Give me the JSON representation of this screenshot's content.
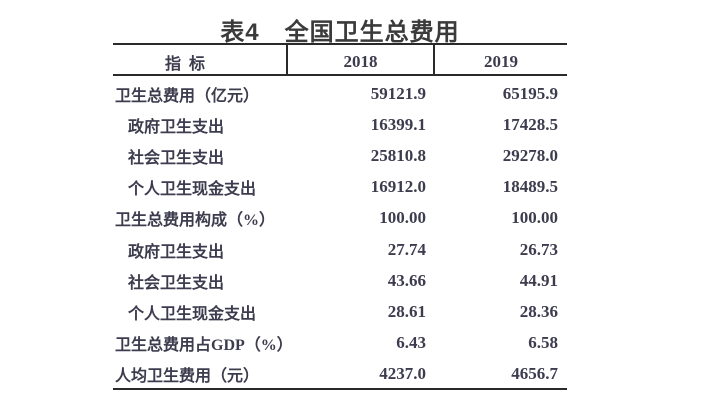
{
  "title": {
    "text": "表4　全国卫生总费用",
    "color": "#3b3b3b"
  },
  "table": {
    "text_color": "#3c3c4e",
    "border_color": "#2a2a2a",
    "columns": [
      "指 标",
      "2018",
      "2019"
    ],
    "rows": [
      {
        "label": "卫生总费用（亿元）",
        "indent": 0,
        "v2018": "59121.9",
        "v2019": "65195.9"
      },
      {
        "label": "政府卫生支出",
        "indent": 1,
        "v2018": "16399.1",
        "v2019": "17428.5"
      },
      {
        "label": "社会卫生支出",
        "indent": 1,
        "v2018": "25810.8",
        "v2019": "29278.0"
      },
      {
        "label": "个人卫生现金支出",
        "indent": 1,
        "v2018": "16912.0",
        "v2019": "18489.5"
      },
      {
        "label": "卫生总费用构成（%）",
        "indent": 0,
        "v2018": "100.00",
        "v2019": "100.00"
      },
      {
        "label": "政府卫生支出",
        "indent": 1,
        "v2018": "27.74",
        "v2019": "26.73"
      },
      {
        "label": "社会卫生支出",
        "indent": 1,
        "v2018": "43.66",
        "v2019": "44.91"
      },
      {
        "label": "个人卫生现金支出",
        "indent": 1,
        "v2018": "28.61",
        "v2019": "28.36"
      },
      {
        "label": "卫生总费用占GDP（%）",
        "indent": 0,
        "v2018": "6.43",
        "v2019": "6.58"
      },
      {
        "label": "人均卫生费用（元）",
        "indent": 0,
        "v2018": "4237.0",
        "v2019": "4656.7"
      }
    ]
  }
}
